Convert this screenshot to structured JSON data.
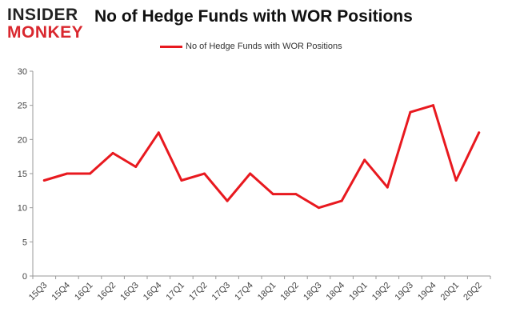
{
  "brand": {
    "line1": "INSIDER",
    "line2": "MONKEY",
    "colors": {
      "dark": "#222222",
      "accent": "#d9272e"
    }
  },
  "chart_data": {
    "type": "line",
    "title": "No of Hedge Funds with WOR Positions",
    "xlabel": "",
    "ylabel": "",
    "categories": [
      "15Q3",
      "15Q4",
      "16Q1",
      "16Q2",
      "16Q3",
      "16Q4",
      "17Q1",
      "17Q2",
      "17Q3",
      "17Q4",
      "18Q1",
      "18Q2",
      "18Q3",
      "18Q4",
      "19Q1",
      "19Q2",
      "19Q3",
      "19Q4",
      "20Q1",
      "20Q2"
    ],
    "series": [
      {
        "name": "No of Hedge Funds with WOR Positions",
        "color": "#e8191f",
        "values": [
          14,
          15,
          15,
          18,
          16,
          21,
          14,
          15,
          11,
          15,
          12,
          12,
          10,
          11,
          17,
          13,
          24,
          25,
          14,
          21
        ]
      }
    ],
    "ylim": [
      0,
      30
    ],
    "yticks": [
      0,
      5,
      10,
      15,
      20,
      25,
      30
    ],
    "grid": false,
    "legend": "top-center"
  }
}
